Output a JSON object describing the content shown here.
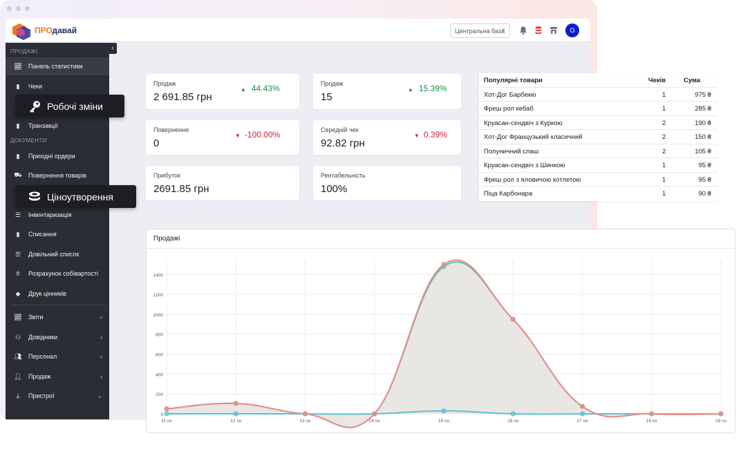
{
  "brand": {
    "part1": "ПРО",
    "part2": "давай"
  },
  "topbar": {
    "branch": "Центральна база",
    "avatar": "О"
  },
  "sidebar": {
    "section1": "ПРОДАЖІ",
    "section2": "ДОКУМЕНТИ",
    "items": [
      {
        "label": "Панель статистики",
        "icon": "chart-line-icon"
      },
      {
        "label": "Чеки",
        "icon": "receipt-icon"
      },
      {
        "label": "Транзакції",
        "icon": "file-icon"
      },
      {
        "label": "Прихідні ордери",
        "icon": "file-icon"
      },
      {
        "label": "Повернення товарів",
        "icon": "truck-icon"
      },
      {
        "label": "Інвентаризація",
        "icon": "list-icon"
      },
      {
        "label": "Списання",
        "icon": "trash-icon"
      },
      {
        "label": "Довільний список",
        "icon": "list-icon"
      },
      {
        "label": "Розрахунок собівартості",
        "icon": "hand-icon"
      },
      {
        "label": "Друк цінників",
        "icon": "tag-icon"
      },
      {
        "label": "Звіти",
        "icon": "chart-line-icon"
      },
      {
        "label": "Довідники",
        "icon": "sitemap-icon"
      },
      {
        "label": "Персонал",
        "icon": "users-icon"
      },
      {
        "label": "Продаж",
        "icon": "user-icon"
      },
      {
        "label": "Пристрої",
        "icon": "plug-icon"
      }
    ]
  },
  "tooltips": {
    "shifts": "Робочі зміни",
    "pricing": "Ціноутворення"
  },
  "stats": {
    "c1": {
      "label": "Продаж",
      "value": "2 691.85 грн",
      "pct": "44.43%"
    },
    "c2": {
      "label": "Продаж",
      "value": "15",
      "pct": "15.39%"
    },
    "c3": {
      "label": "Повернення",
      "value": "0",
      "pct": "-100.00%"
    },
    "c4": {
      "label": "Середній чек",
      "value": "92.82 грн",
      "pct": "0.39%"
    },
    "c5": {
      "label": "Прибуток",
      "value": "2691.85 грн"
    },
    "c6": {
      "label": "Рентабельність",
      "value": "100%"
    }
  },
  "popular": {
    "headers": [
      "Популярні товари",
      "Чеків",
      "Сума"
    ],
    "rows": [
      [
        "Хот-Дог Барбекю",
        "1",
        "975 ₴"
      ],
      [
        "Фреш рол кебаб",
        "1",
        "285 ₴"
      ],
      [
        "Круасан-сендвіч з Куркою",
        "2",
        "190 ₴"
      ],
      [
        "Хот-Дог Французький класичний",
        "2",
        "150 ₴"
      ],
      [
        "Полуничний слаш",
        "2",
        "105 ₴"
      ],
      [
        "Круасан-сендвіч з Шинкою",
        "1",
        "95 ₴"
      ],
      [
        "Фреш рол з яловичою котлетою",
        "1",
        "95 ₴"
      ],
      [
        "Піца Карбонара",
        "1",
        "90 ₴"
      ]
    ]
  },
  "chart_title": "Продажі",
  "chart_data": {
    "type": "area",
    "x": [
      "11 сн",
      "12 сн",
      "13 сн",
      "14 сн",
      "15 сн",
      "16 сн",
      "17 сн",
      "18 сн",
      "19 сн"
    ],
    "series": [
      {
        "values": [
          50,
          105,
          0,
          0,
          1500,
          950,
          75,
          0,
          0
        ],
        "color": "#ee8a8a"
      },
      {
        "values": [
          0,
          0,
          0,
          0,
          30,
          0,
          0,
          0,
          0
        ],
        "color": "#5bbfd6"
      },
      {
        "values": [
          50,
          105,
          0,
          0,
          1480,
          950,
          75,
          0,
          0
        ],
        "color": "#56c4b0"
      }
    ],
    "yticks": [
      0,
      200,
      400,
      600,
      800,
      1000,
      1200,
      1400
    ],
    "ylim": [
      0,
      1520
    ],
    "grid": true
  }
}
